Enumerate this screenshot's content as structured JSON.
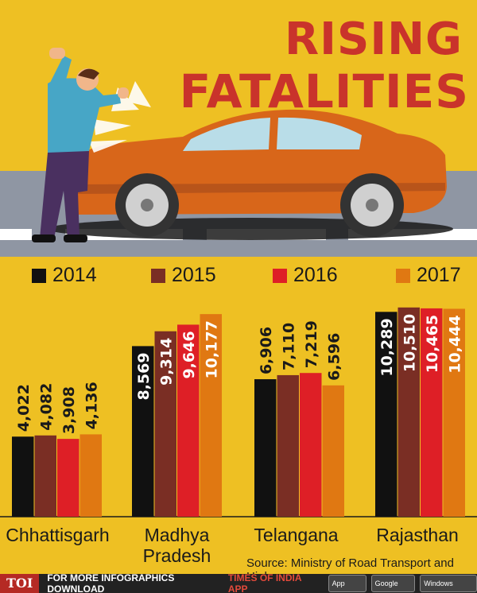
{
  "header": {
    "title_line1": "RISING",
    "title_line2": "FATALITIES"
  },
  "chart_data": {
    "type": "bar",
    "title": "RISING FATALITIES",
    "categories": [
      "Chhattisgarh",
      "Madhya Pradesh",
      "Telangana",
      "Rajasthan"
    ],
    "series": [
      {
        "name": "2014",
        "values": [
          4022,
          8569,
          6906,
          10289
        ]
      },
      {
        "name": "2015",
        "values": [
          4082,
          9314,
          7110,
          10510
        ]
      },
      {
        "name": "2016",
        "values": [
          3908,
          9646,
          7219,
          10465
        ]
      },
      {
        "name": "2017",
        "values": [
          4136,
          10177,
          6596,
          10444
        ]
      }
    ],
    "data_labels": [
      [
        "4,022",
        "4,082",
        "3,908",
        "4,136"
      ],
      [
        "8,569",
        "9,314",
        "9,646",
        "10,177"
      ],
      [
        "6,906",
        "7,110",
        "7,219",
        "6,596"
      ],
      [
        "10,289",
        "10,510",
        "10,465",
        "10,444"
      ]
    ],
    "colors": [
      "#111111",
      "#7a2e24",
      "#de1f26",
      "#e07812"
    ],
    "ylim": [
      0,
      11500
    ],
    "legend": "top",
    "grid": false
  },
  "category_labels": {
    "chhattisgarh": "Chhattisgarh",
    "madhya_line1": "Madhya",
    "madhya_line2": "Pradesh",
    "telangana": "Telangana",
    "rajasthan": "Rajasthan"
  },
  "source": "Source:  Ministry of Road Transport and Highways",
  "footer": {
    "logo": "TOI",
    "text_a": "FOR MORE  INFOGRAPHICS DOWNLOAD",
    "text_b": "TIMES OF INDIA  APP",
    "badge_appstore": "App Store",
    "badge_googleplay": "Google play",
    "badge_windows": "Windows Phone"
  }
}
